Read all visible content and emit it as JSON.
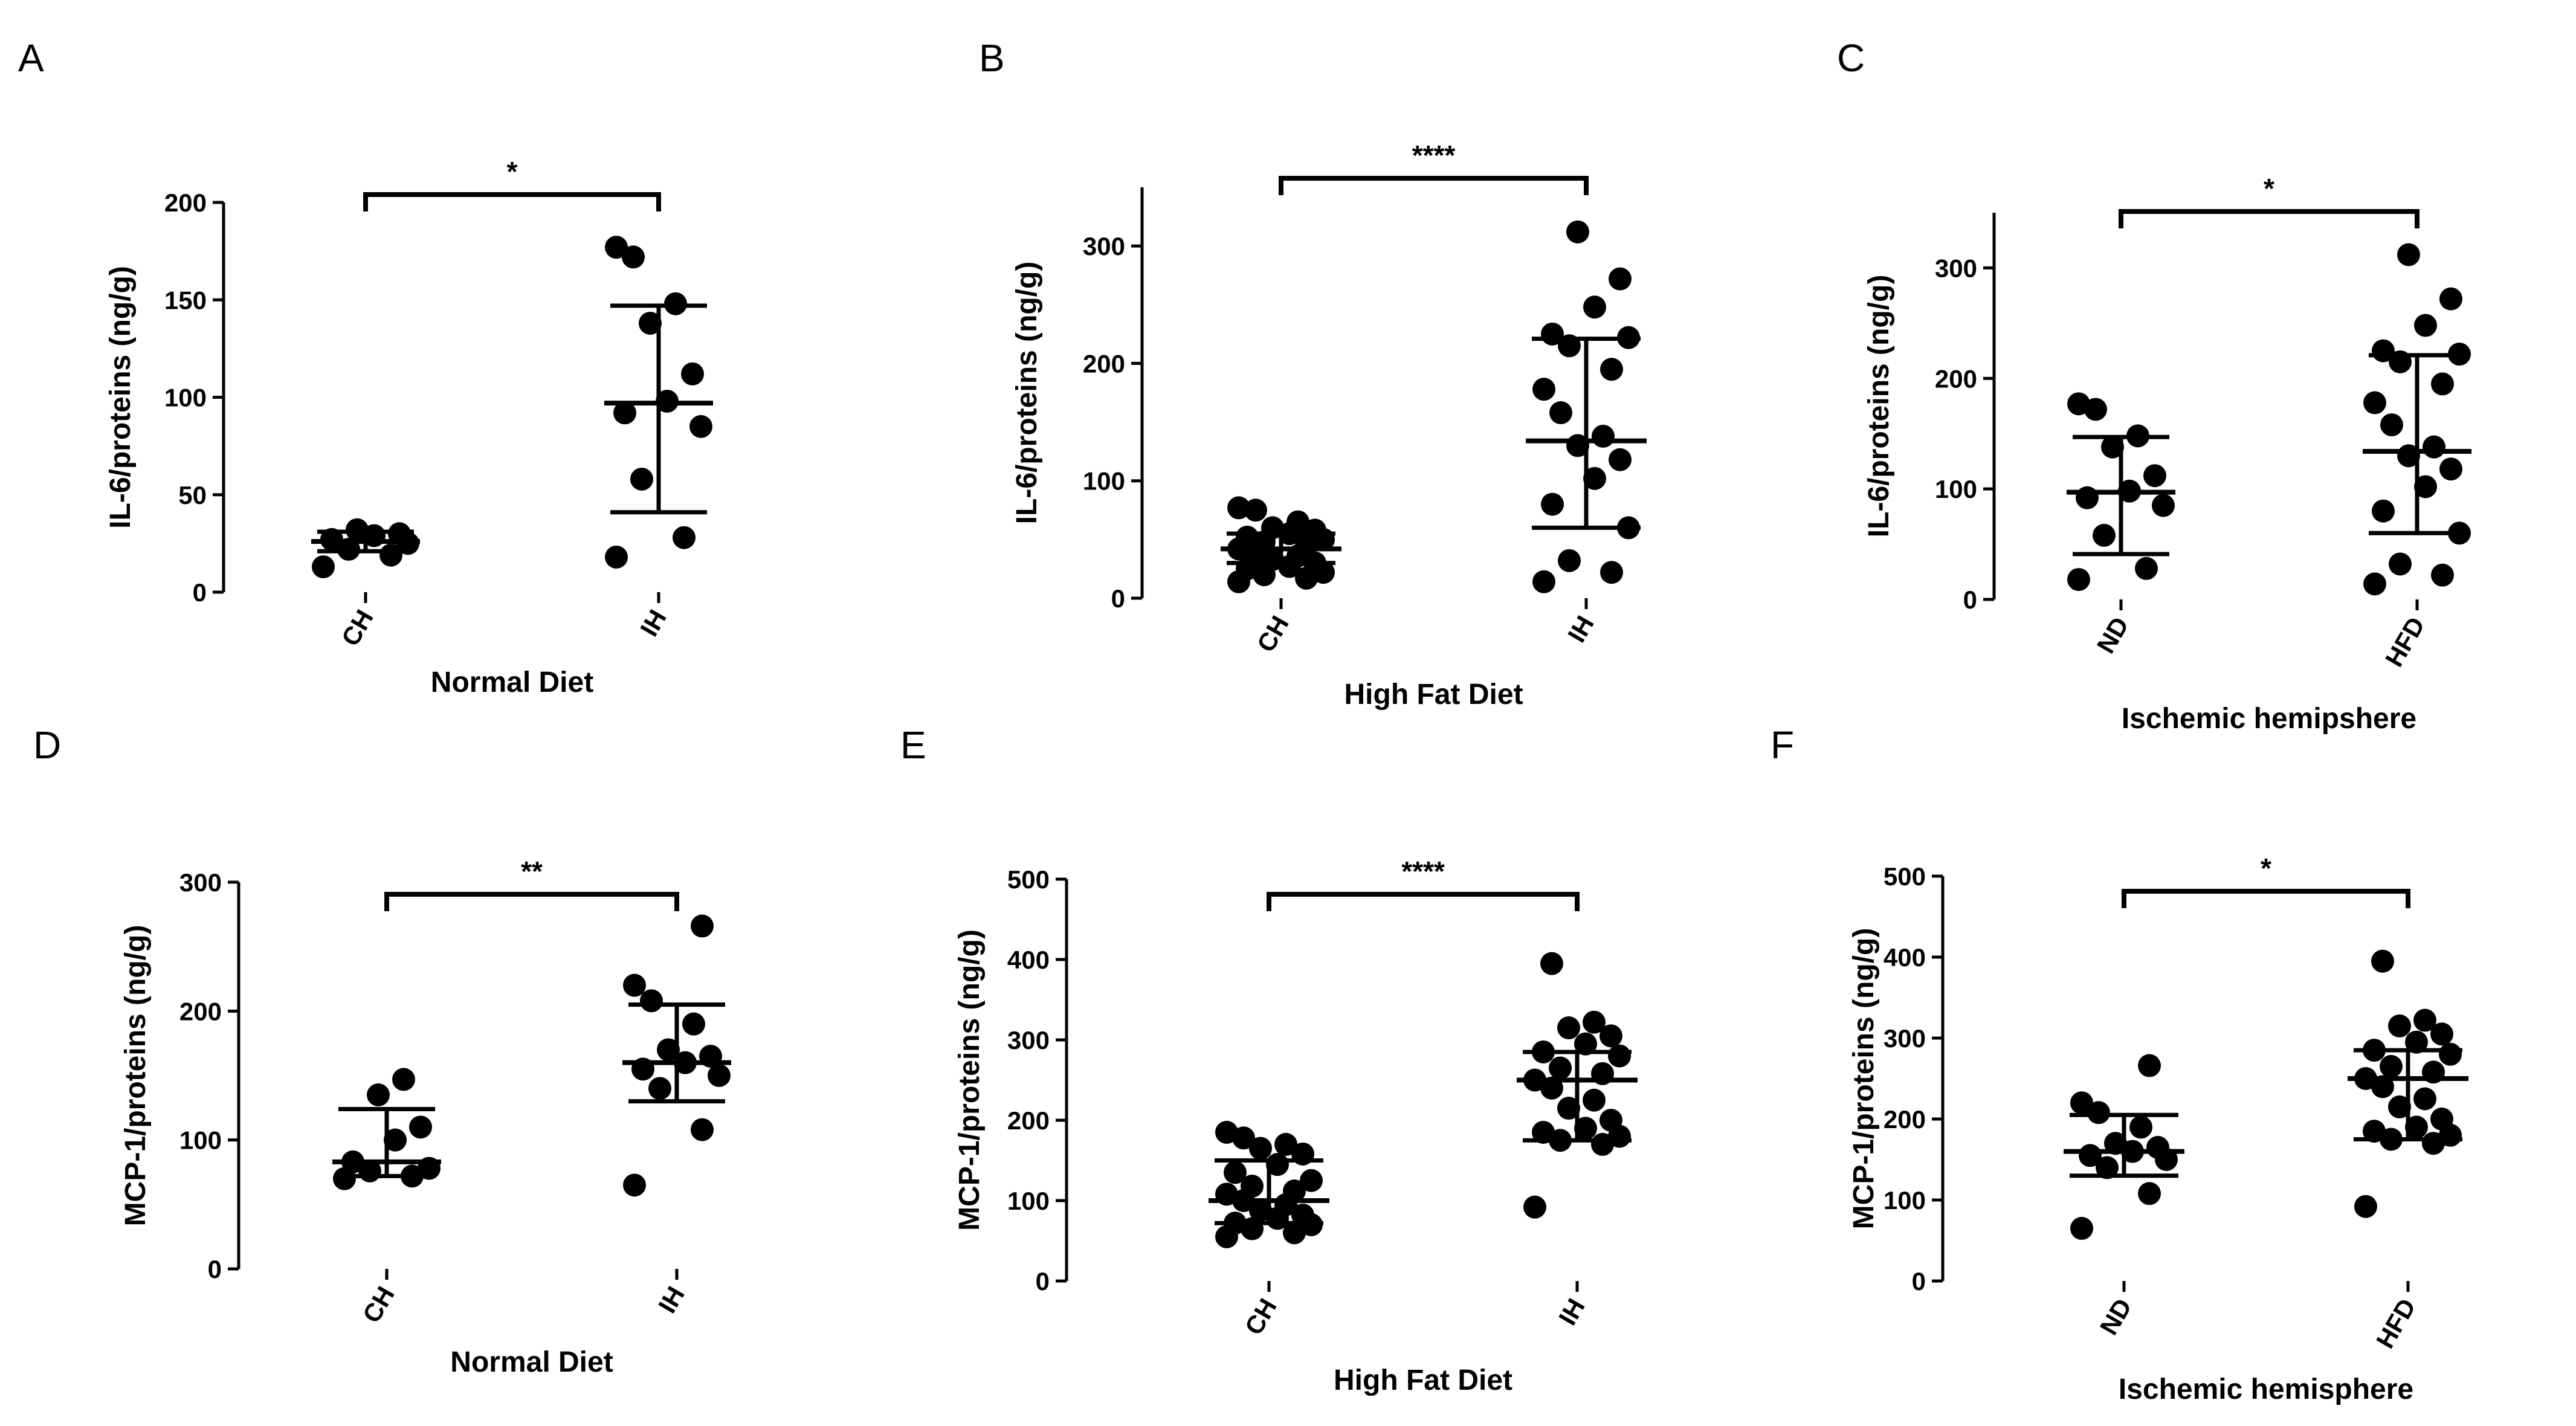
{
  "figure": {
    "background": "#ffffff",
    "ink": "#000000"
  },
  "chart_data": [
    {
      "panel": "A",
      "type": "scatter",
      "title": "",
      "xlabel": "Normal Diet",
      "ylabel": "IL-6/proteins (ng/g)",
      "ylim": [
        0,
        200
      ],
      "yticks": [
        0,
        50,
        100,
        150,
        200
      ],
      "categories": [
        "CH",
        "IH"
      ],
      "groups": [
        {
          "name": "CH",
          "points": [
            13,
            19,
            22,
            25,
            27,
            29,
            30,
            32
          ],
          "mean": 26,
          "sd_low": 21,
          "sd_high": 31
        },
        {
          "name": "IH",
          "points": [
            18,
            28,
            58,
            85,
            92,
            98,
            112,
            138,
            148,
            172,
            177
          ],
          "mean": 97,
          "sd_low": 41,
          "sd_high": 147
        }
      ],
      "significance": "*"
    },
    {
      "panel": "B",
      "type": "scatter",
      "title": "",
      "xlabel": "High Fat Diet",
      "ylabel": "IL-6/proteins (ng/g)",
      "ylim": [
        0,
        350
      ],
      "yticks": [
        0,
        100,
        200,
        300
      ],
      "categories": [
        "CH",
        "IH"
      ],
      "groups": [
        {
          "name": "CH",
          "points": [
            14,
            17,
            20,
            22,
            25,
            27,
            30,
            33,
            36,
            40,
            42,
            45,
            48,
            50,
            52,
            55,
            58,
            60,
            65,
            75,
            77
          ],
          "mean": 42,
          "sd_low": 30,
          "sd_high": 55
        },
        {
          "name": "IH",
          "points": [
            14,
            22,
            32,
            60,
            80,
            102,
            118,
            130,
            138,
            158,
            178,
            195,
            215,
            222,
            225,
            248,
            272,
            312
          ],
          "mean": 134,
          "sd_low": 60,
          "sd_high": 221
        }
      ],
      "significance": "****"
    },
    {
      "panel": "C",
      "type": "scatter",
      "title": "",
      "xlabel": "Ischemic hemipshere",
      "ylabel": "IL-6/proteins (ng/g)",
      "ylim": [
        0,
        350
      ],
      "yticks": [
        0,
        100,
        200,
        300
      ],
      "categories": [
        "ND",
        "HFD"
      ],
      "groups": [
        {
          "name": "ND",
          "points": [
            18,
            28,
            58,
            85,
            92,
            98,
            112,
            138,
            148,
            172,
            177
          ],
          "mean": 97,
          "sd_low": 41,
          "sd_high": 147
        },
        {
          "name": "HFD",
          "points": [
            14,
            22,
            32,
            60,
            80,
            102,
            118,
            130,
            138,
            158,
            178,
            195,
            215,
            222,
            225,
            248,
            272,
            312
          ],
          "mean": 134,
          "sd_low": 60,
          "sd_high": 221
        }
      ],
      "significance": "*"
    },
    {
      "panel": "D",
      "type": "scatter",
      "title": "",
      "xlabel": "Normal Diet",
      "ylabel": "MCP-1/proteins (ng/g)",
      "ylim": [
        0,
        300
      ],
      "yticks": [
        0,
        100,
        200,
        300
      ],
      "categories": [
        "CH",
        "IH"
      ],
      "groups": [
        {
          "name": "CH",
          "points": [
            70,
            72,
            76,
            78,
            83,
            100,
            110,
            135,
            147
          ],
          "mean": 83,
          "sd_low": 72,
          "sd_high": 124
        },
        {
          "name": "IH",
          "points": [
            65,
            108,
            140,
            150,
            155,
            160,
            165,
            170,
            190,
            208,
            220,
            266
          ],
          "mean": 160,
          "sd_low": 130,
          "sd_high": 205
        }
      ],
      "significance": "**"
    },
    {
      "panel": "E",
      "type": "scatter",
      "title": "",
      "xlabel": "High Fat Diet",
      "ylabel": "MCP-1/proteins (ng/g)",
      "ylim": [
        0,
        500
      ],
      "yticks": [
        0,
        100,
        200,
        300,
        400,
        500
      ],
      "categories": [
        "CH",
        "IH"
      ],
      "groups": [
        {
          "name": "CH",
          "points": [
            55,
            60,
            65,
            70,
            72,
            78,
            82,
            88,
            95,
            100,
            108,
            112,
            118,
            125,
            135,
            145,
            158,
            165,
            170,
            178,
            185
          ],
          "mean": 100,
          "sd_low": 72,
          "sd_high": 150
        },
        {
          "name": "IH",
          "points": [
            92,
            170,
            175,
            180,
            185,
            190,
            200,
            215,
            225,
            240,
            250,
            258,
            265,
            280,
            285,
            295,
            305,
            315,
            322,
            395
          ],
          "mean": 250,
          "sd_low": 175,
          "sd_high": 285
        }
      ],
      "significance": "****"
    },
    {
      "panel": "F",
      "type": "scatter",
      "title": "",
      "xlabel": "Ischemic hemisphere",
      "ylabel": "MCP-1/proteins (ng/g)",
      "ylim": [
        0,
        500
      ],
      "yticks": [
        0,
        100,
        200,
        300,
        400,
        500
      ],
      "categories": [
        "ND",
        "HFD"
      ],
      "groups": [
        {
          "name": "ND",
          "points": [
            65,
            108,
            140,
            150,
            155,
            160,
            165,
            170,
            190,
            208,
            220,
            266
          ],
          "mean": 160,
          "sd_low": 130,
          "sd_high": 205
        },
        {
          "name": "HFD",
          "points": [
            92,
            170,
            175,
            180,
            185,
            190,
            200,
            215,
            225,
            240,
            250,
            258,
            265,
            280,
            285,
            295,
            305,
            315,
            322,
            395
          ],
          "mean": 250,
          "sd_low": 175,
          "sd_high": 285
        }
      ],
      "significance": "*"
    }
  ]
}
